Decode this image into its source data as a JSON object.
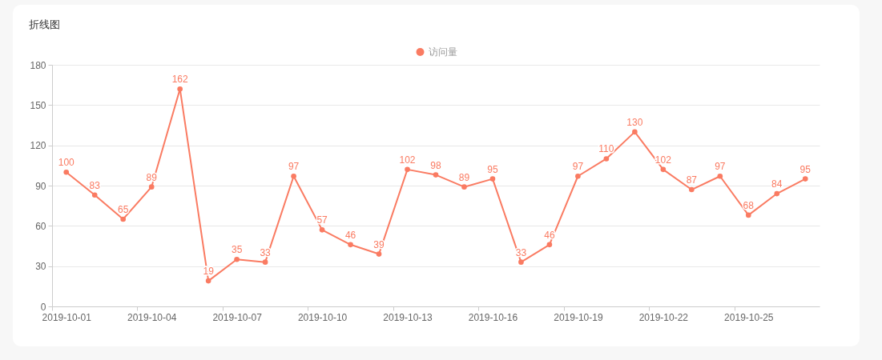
{
  "chart_data": {
    "type": "line",
    "title": "折线图",
    "categories": [
      "2019-10-01",
      null,
      null,
      "2019-10-04",
      null,
      null,
      "2019-10-07",
      null,
      null,
      "2019-10-10",
      null,
      null,
      "2019-10-13",
      null,
      null,
      "2019-10-16",
      null,
      null,
      "2019-10-19",
      null,
      null,
      "2019-10-22",
      null,
      null,
      "2019-10-25",
      null,
      null
    ],
    "series": [
      {
        "name": "访问量",
        "color": "#fa7b62",
        "values": [
          100,
          83,
          65,
          89,
          162,
          19,
          35,
          33,
          97,
          57,
          46,
          39,
          102,
          98,
          89,
          95,
          33,
          46,
          97,
          110,
          130,
          102,
          87,
          97,
          68,
          84,
          95
        ]
      }
    ],
    "ylim": [
      0,
      180
    ],
    "yticks": [
      0,
      30,
      60,
      90,
      120,
      150,
      180
    ],
    "grid": "y",
    "legend": "top",
    "marker": "circle",
    "line_style": "solid",
    "data_labels": true
  }
}
